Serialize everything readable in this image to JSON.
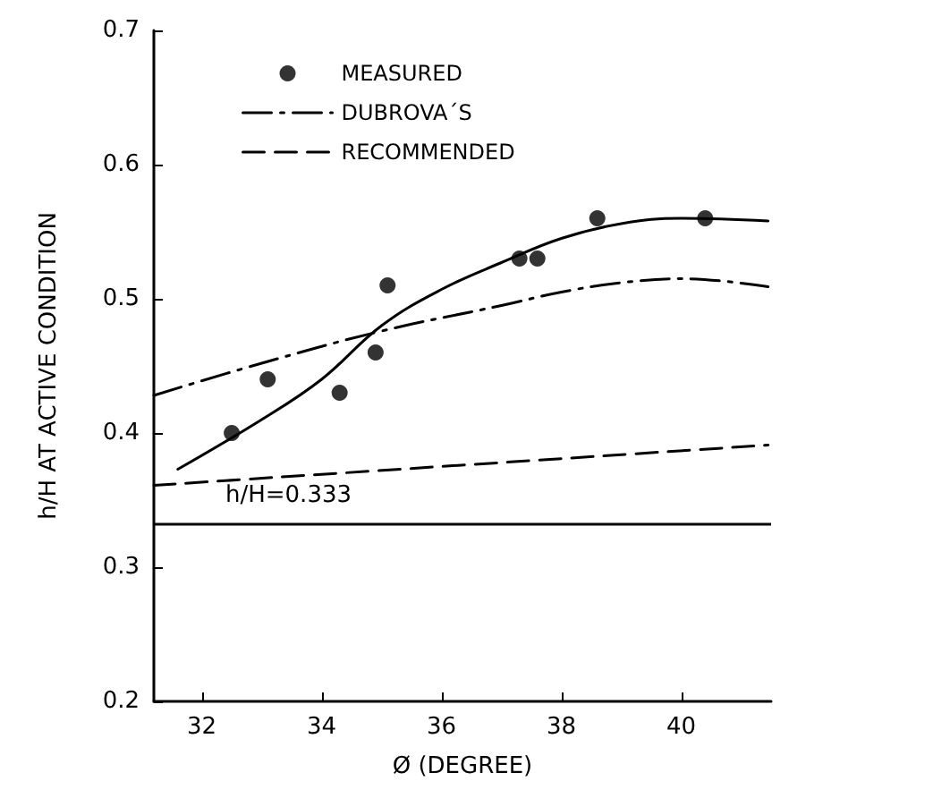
{
  "chart_data": {
    "type": "line",
    "xlabel": "Ø (DEGREE)",
    "ylabel": "h/H AT ACTIVE CONDITION",
    "xlim": [
      31.2,
      41.5
    ],
    "xticks": [
      32,
      34,
      36,
      38,
      40
    ],
    "ylim": [
      0.2,
      0.7
    ],
    "yticks": [
      0.2,
      0.3,
      0.4,
      0.5,
      0.6,
      0.7
    ],
    "grid": false,
    "legend": "top",
    "series": [
      {
        "name": "MEASURED",
        "type": "scatter",
        "color": "#000000",
        "marker": "circle",
        "x": [
          32.5,
          33.1,
          34.3,
          34.9,
          35.1,
          37.3,
          37.6,
          38.6,
          40.4
        ],
        "values": [
          0.4,
          0.44,
          0.43,
          0.46,
          0.51,
          0.53,
          0.53,
          0.56,
          0.56
        ]
      },
      {
        "type": "line",
        "color": "#000000",
        "line_style": "solid",
        "x": [
          31.6,
          33,
          34,
          35,
          36,
          37,
          38,
          39,
          40,
          41.45
        ],
        "values": [
          0.373,
          0.41,
          0.44,
          0.48,
          0.507,
          0.527,
          0.545,
          0.556,
          0.56,
          0.558
        ]
      },
      {
        "name": "DUBROVA´S",
        "type": "line",
        "color": "#000000",
        "line_style": "dashdot",
        "x": [
          31.2,
          33,
          35,
          37,
          38,
          39,
          40,
          41.45
        ],
        "values": [
          0.428,
          0.452,
          0.476,
          0.495,
          0.505,
          0.512,
          0.515,
          0.509
        ]
      },
      {
        "name": "RECOMMENDED",
        "type": "line",
        "color": "#000000",
        "line_style": "dashed",
        "x": [
          31.2,
          41.45
        ],
        "values": [
          0.361,
          0.391
        ]
      }
    ],
    "ref_lines": [
      {
        "axis": "y",
        "value": 0.333,
        "label": "h/H=0.333",
        "color": "#000000",
        "line_style": "solid"
      }
    ]
  }
}
